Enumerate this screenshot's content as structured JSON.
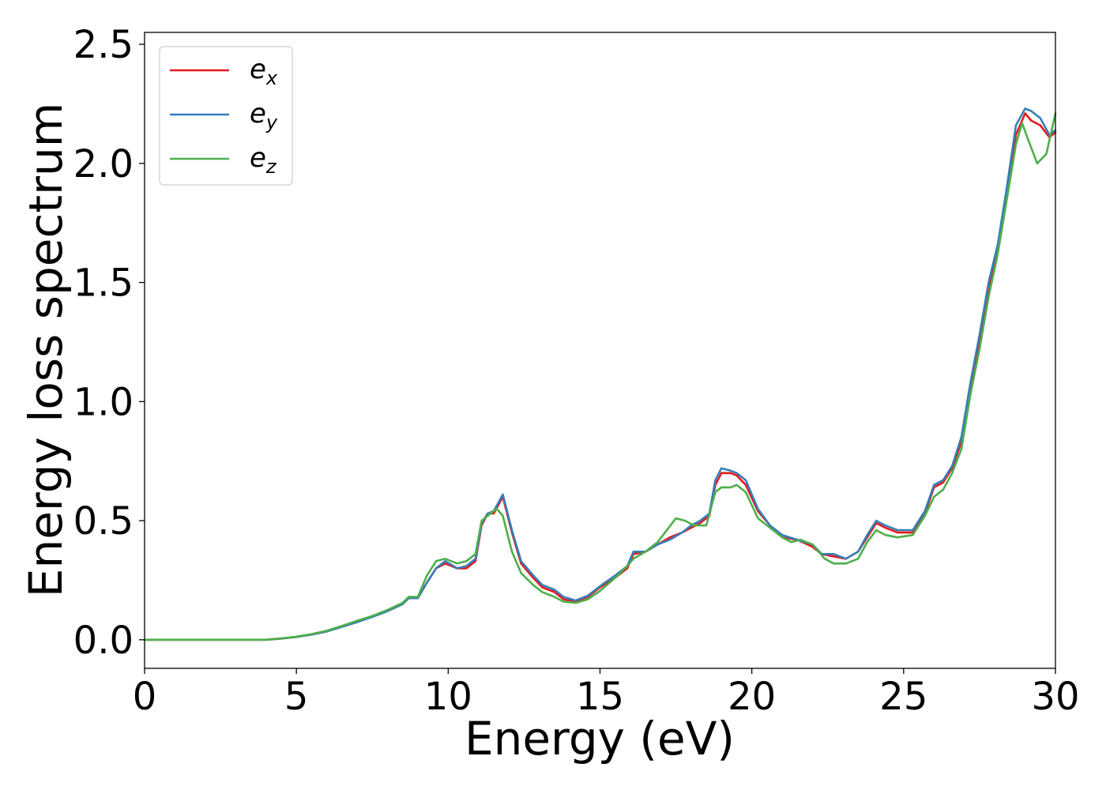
{
  "chart_data": {
    "type": "line",
    "title": "",
    "xlabel": "Energy (eV)",
    "ylabel": "Energy loss spectrum",
    "xlim": [
      0,
      30
    ],
    "ylim": [
      -0.12,
      2.55
    ],
    "xticks": [
      0,
      5,
      10,
      15,
      20,
      25,
      30
    ],
    "xtick_labels": [
      "0",
      "5",
      "10",
      "15",
      "20",
      "25",
      "30"
    ],
    "yticks": [
      0.0,
      0.5,
      1.0,
      1.5,
      2.0,
      2.5
    ],
    "ytick_labels": [
      "0.0",
      "0.5",
      "1.0",
      "1.5",
      "2.0",
      "2.5"
    ],
    "grid": false,
    "legend_position": "top-left",
    "series": [
      {
        "name": "e_x",
        "label_main": "e",
        "label_sub": "x",
        "color": "#e41a1c",
        "points": [
          [
            0,
            0.0
          ],
          [
            2,
            0.0
          ],
          [
            4,
            0.0
          ],
          [
            4.5,
            0.005
          ],
          [
            5,
            0.012
          ],
          [
            5.5,
            0.022
          ],
          [
            6,
            0.035
          ],
          [
            6.5,
            0.055
          ],
          [
            7,
            0.075
          ],
          [
            7.5,
            0.098
          ],
          [
            8,
            0.12
          ],
          [
            8.5,
            0.15
          ],
          [
            8.7,
            0.175
          ],
          [
            9,
            0.175
          ],
          [
            9.3,
            0.24
          ],
          [
            9.6,
            0.3
          ],
          [
            9.9,
            0.32
          ],
          [
            10.3,
            0.3
          ],
          [
            10.6,
            0.3
          ],
          [
            10.9,
            0.33
          ],
          [
            11.1,
            0.48
          ],
          [
            11.3,
            0.53
          ],
          [
            11.5,
            0.53
          ],
          [
            11.8,
            0.6
          ],
          [
            12.1,
            0.45
          ],
          [
            12.4,
            0.32
          ],
          [
            12.8,
            0.26
          ],
          [
            13.1,
            0.22
          ],
          [
            13.5,
            0.2
          ],
          [
            13.8,
            0.17
          ],
          [
            14.2,
            0.16
          ],
          [
            14.6,
            0.18
          ],
          [
            15,
            0.22
          ],
          [
            15.5,
            0.26
          ],
          [
            15.9,
            0.3
          ],
          [
            16.1,
            0.36
          ],
          [
            16.5,
            0.37
          ],
          [
            16.9,
            0.4
          ],
          [
            17.3,
            0.43
          ],
          [
            17.7,
            0.45
          ],
          [
            18,
            0.47
          ],
          [
            18.3,
            0.49
          ],
          [
            18.6,
            0.52
          ],
          [
            18.8,
            0.65
          ],
          [
            19,
            0.7
          ],
          [
            19.3,
            0.7
          ],
          [
            19.5,
            0.69
          ],
          [
            19.8,
            0.65
          ],
          [
            20.2,
            0.54
          ],
          [
            20.6,
            0.48
          ],
          [
            21,
            0.43
          ],
          [
            21.5,
            0.42
          ],
          [
            22,
            0.39
          ],
          [
            22.3,
            0.36
          ],
          [
            22.7,
            0.35
          ],
          [
            23.1,
            0.34
          ],
          [
            23.5,
            0.37
          ],
          [
            23.8,
            0.43
          ],
          [
            24.1,
            0.49
          ],
          [
            24.4,
            0.47
          ],
          [
            24.8,
            0.45
          ],
          [
            25.3,
            0.45
          ],
          [
            25.7,
            0.53
          ],
          [
            26,
            0.64
          ],
          [
            26.3,
            0.66
          ],
          [
            26.6,
            0.72
          ],
          [
            26.9,
            0.83
          ],
          [
            27.2,
            1.05
          ],
          [
            27.5,
            1.25
          ],
          [
            27.8,
            1.48
          ],
          [
            28.1,
            1.64
          ],
          [
            28.4,
            1.86
          ],
          [
            28.7,
            2.12
          ],
          [
            29,
            2.21
          ],
          [
            29.2,
            2.18
          ],
          [
            29.5,
            2.16
          ],
          [
            29.8,
            2.11
          ],
          [
            30,
            2.13
          ]
        ]
      },
      {
        "name": "e_y",
        "label_main": "e",
        "label_sub": "y",
        "color": "#377eb8",
        "points": [
          [
            0,
            0.0
          ],
          [
            2,
            0.0
          ],
          [
            4,
            0.0
          ],
          [
            4.5,
            0.005
          ],
          [
            5,
            0.012
          ],
          [
            5.5,
            0.022
          ],
          [
            6,
            0.035
          ],
          [
            6.5,
            0.054
          ],
          [
            7,
            0.074
          ],
          [
            7.5,
            0.096
          ],
          [
            8,
            0.12
          ],
          [
            8.5,
            0.15
          ],
          [
            8.7,
            0.175
          ],
          [
            9,
            0.175
          ],
          [
            9.3,
            0.24
          ],
          [
            9.6,
            0.3
          ],
          [
            9.9,
            0.33
          ],
          [
            10.3,
            0.3
          ],
          [
            10.6,
            0.31
          ],
          [
            10.9,
            0.34
          ],
          [
            11.1,
            0.49
          ],
          [
            11.3,
            0.53
          ],
          [
            11.5,
            0.54
          ],
          [
            11.8,
            0.61
          ],
          [
            12.1,
            0.46
          ],
          [
            12.4,
            0.33
          ],
          [
            12.8,
            0.27
          ],
          [
            13.1,
            0.23
          ],
          [
            13.5,
            0.21
          ],
          [
            13.8,
            0.18
          ],
          [
            14.2,
            0.165
          ],
          [
            14.6,
            0.185
          ],
          [
            15,
            0.225
          ],
          [
            15.5,
            0.27
          ],
          [
            15.9,
            0.31
          ],
          [
            16.1,
            0.37
          ],
          [
            16.5,
            0.37
          ],
          [
            16.9,
            0.4
          ],
          [
            17.3,
            0.42
          ],
          [
            17.7,
            0.45
          ],
          [
            18,
            0.48
          ],
          [
            18.3,
            0.5
          ],
          [
            18.6,
            0.53
          ],
          [
            18.8,
            0.67
          ],
          [
            19,
            0.72
          ],
          [
            19.3,
            0.71
          ],
          [
            19.5,
            0.7
          ],
          [
            19.8,
            0.67
          ],
          [
            20.2,
            0.55
          ],
          [
            20.6,
            0.48
          ],
          [
            21,
            0.44
          ],
          [
            21.5,
            0.42
          ],
          [
            22,
            0.4
          ],
          [
            22.3,
            0.36
          ],
          [
            22.7,
            0.36
          ],
          [
            23.1,
            0.34
          ],
          [
            23.5,
            0.37
          ],
          [
            23.8,
            0.44
          ],
          [
            24.1,
            0.5
          ],
          [
            24.4,
            0.48
          ],
          [
            24.8,
            0.46
          ],
          [
            25.3,
            0.46
          ],
          [
            25.7,
            0.54
          ],
          [
            26,
            0.65
          ],
          [
            26.3,
            0.67
          ],
          [
            26.6,
            0.73
          ],
          [
            26.9,
            0.85
          ],
          [
            27.2,
            1.08
          ],
          [
            27.5,
            1.28
          ],
          [
            27.8,
            1.5
          ],
          [
            28.1,
            1.66
          ],
          [
            28.4,
            1.9
          ],
          [
            28.7,
            2.16
          ],
          [
            29,
            2.23
          ],
          [
            29.2,
            2.22
          ],
          [
            29.5,
            2.19
          ],
          [
            29.8,
            2.12
          ],
          [
            30,
            2.14
          ]
        ]
      },
      {
        "name": "e_z",
        "label_main": "e",
        "label_sub": "z",
        "color": "#4daf4a",
        "points": [
          [
            0,
            0.0
          ],
          [
            2,
            0.0
          ],
          [
            4,
            0.0
          ],
          [
            4.5,
            0.006
          ],
          [
            5,
            0.013
          ],
          [
            5.5,
            0.024
          ],
          [
            6,
            0.038
          ],
          [
            6.5,
            0.058
          ],
          [
            7,
            0.08
          ],
          [
            7.5,
            0.1
          ],
          [
            8,
            0.125
          ],
          [
            8.5,
            0.155
          ],
          [
            8.7,
            0.18
          ],
          [
            9,
            0.18
          ],
          [
            9.3,
            0.27
          ],
          [
            9.6,
            0.33
          ],
          [
            9.9,
            0.34
          ],
          [
            10.3,
            0.32
          ],
          [
            10.6,
            0.33
          ],
          [
            10.9,
            0.36
          ],
          [
            11.1,
            0.5
          ],
          [
            11.3,
            0.52
          ],
          [
            11.6,
            0.55
          ],
          [
            11.8,
            0.52
          ],
          [
            12.1,
            0.37
          ],
          [
            12.4,
            0.28
          ],
          [
            12.8,
            0.23
          ],
          [
            13.1,
            0.2
          ],
          [
            13.5,
            0.18
          ],
          [
            13.8,
            0.16
          ],
          [
            14.2,
            0.155
          ],
          [
            14.6,
            0.17
          ],
          [
            15,
            0.205
          ],
          [
            15.5,
            0.26
          ],
          [
            15.9,
            0.31
          ],
          [
            16.1,
            0.34
          ],
          [
            16.5,
            0.37
          ],
          [
            16.9,
            0.41
          ],
          [
            17.2,
            0.46
          ],
          [
            17.5,
            0.51
          ],
          [
            17.8,
            0.5
          ],
          [
            18.1,
            0.48
          ],
          [
            18.5,
            0.48
          ],
          [
            18.8,
            0.62
          ],
          [
            19,
            0.64
          ],
          [
            19.3,
            0.64
          ],
          [
            19.5,
            0.65
          ],
          [
            19.8,
            0.62
          ],
          [
            20.2,
            0.51
          ],
          [
            20.6,
            0.47
          ],
          [
            21,
            0.43
          ],
          [
            21.3,
            0.41
          ],
          [
            21.6,
            0.42
          ],
          [
            22,
            0.4
          ],
          [
            22.4,
            0.34
          ],
          [
            22.7,
            0.32
          ],
          [
            23.1,
            0.32
          ],
          [
            23.5,
            0.34
          ],
          [
            23.8,
            0.41
          ],
          [
            24.1,
            0.46
          ],
          [
            24.4,
            0.44
          ],
          [
            24.8,
            0.43
          ],
          [
            25.3,
            0.44
          ],
          [
            25.7,
            0.52
          ],
          [
            26,
            0.6
          ],
          [
            26.3,
            0.63
          ],
          [
            26.6,
            0.7
          ],
          [
            26.9,
            0.8
          ],
          [
            27.2,
            1.03
          ],
          [
            27.5,
            1.22
          ],
          [
            27.8,
            1.44
          ],
          [
            28.1,
            1.62
          ],
          [
            28.4,
            1.85
          ],
          [
            28.7,
            2.08
          ],
          [
            28.9,
            2.17
          ],
          [
            29.1,
            2.1
          ],
          [
            29.4,
            2.0
          ],
          [
            29.7,
            2.04
          ],
          [
            30,
            2.21
          ]
        ]
      }
    ]
  }
}
